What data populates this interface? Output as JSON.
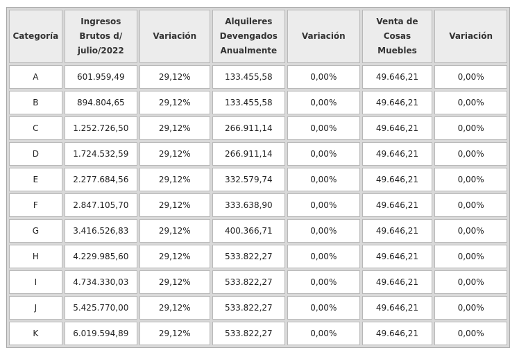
{
  "headers": [
    "Categoría",
    "Ingresos Brutos d/ julio/2022",
    "Variación",
    "Alquileres Devengados Anualmente",
    "Variación",
    "Venta de Cosas Muebles",
    "Variación"
  ],
  "rows": [
    [
      "A",
      "601.959,49",
      "29,12%",
      "133.455,58",
      "0,00%",
      "49.646,21",
      "0,00%"
    ],
    [
      "B",
      "894.804,65",
      "29,12%",
      "133.455,58",
      "0,00%",
      "49.646,21",
      "0,00%"
    ],
    [
      "C",
      "1.252.726,50",
      "29,12%",
      "266.911,14",
      "0,00%",
      "49.646,21",
      "0,00%"
    ],
    [
      "D",
      "1.724.532,59",
      "29,12%",
      "266.911,14",
      "0,00%",
      "49.646,21",
      "0,00%"
    ],
    [
      "E",
      "2.277.684,56",
      "29,12%",
      "332.579,74",
      "0,00%",
      "49.646,21",
      "0,00%"
    ],
    [
      "F",
      "2.847.105,70",
      "29,12%",
      "333.638,90",
      "0,00%",
      "49.646,21",
      "0,00%"
    ],
    [
      "G",
      "3.416.526,83",
      "29,12%",
      "400.366,71",
      "0,00%",
      "49.646,21",
      "0,00%"
    ],
    [
      "H",
      "4.229.985,60",
      "29,12%",
      "533.822,27",
      "0,00%",
      "49.646,21",
      "0,00%"
    ],
    [
      "I",
      "4.734.330,03",
      "29,12%",
      "533.822,27",
      "0,00%",
      "49.646,21",
      "0,00%"
    ],
    [
      "J",
      "5.425.770,00",
      "29,12%",
      "533.822,27",
      "0,00%",
      "49.646,21",
      "0,00%"
    ],
    [
      "K",
      "6.019.594,89",
      "29,12%",
      "533.822,27",
      "0,00%",
      "49.646,21",
      "0,00%"
    ]
  ]
}
